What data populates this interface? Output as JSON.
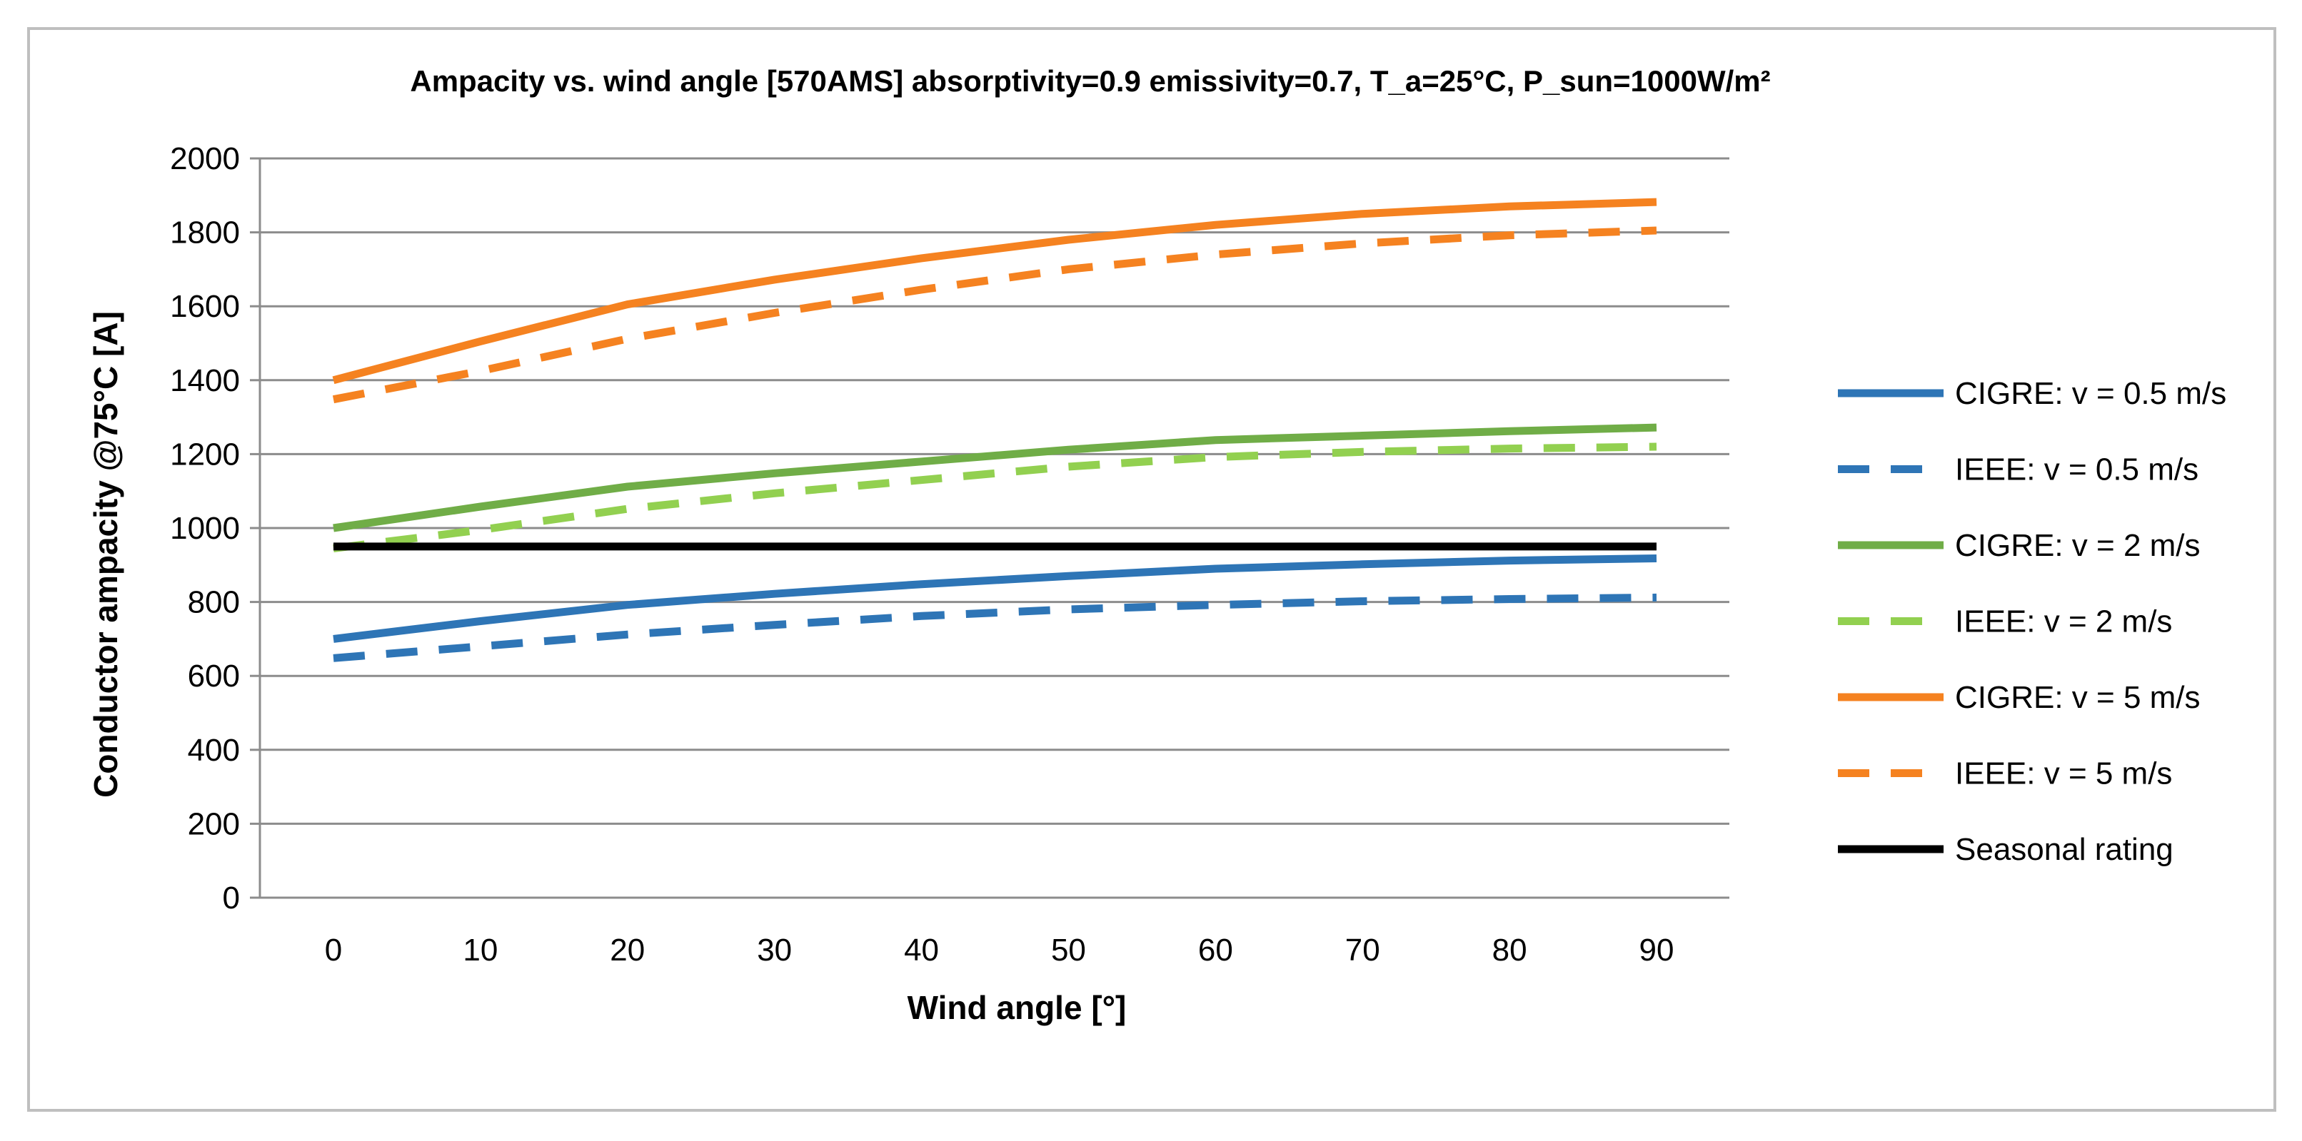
{
  "chart_data": {
    "type": "line",
    "title": "Ampacity vs. wind angle [570AMS] absorptivity=0.9  emissivity=0.7, T_a=25°C, P_sun=1000W/m²",
    "xlabel": "Wind angle [°]",
    "ylabel": "Conductor ampacity @75°C [A]",
    "x": [
      0,
      10,
      20,
      30,
      40,
      50,
      60,
      70,
      80,
      90
    ],
    "xlim": [
      0,
      90
    ],
    "ylim": [
      0,
      2000
    ],
    "yticks": [
      0,
      200,
      400,
      600,
      800,
      1000,
      1200,
      1400,
      1600,
      1800,
      2000
    ],
    "grid": "horizontal",
    "legend_position": "right",
    "series": [
      {
        "name": "CIGRE: v = 0.5 m/s",
        "color": "#2e75b6",
        "dash": "solid",
        "values": [
          700,
          748,
          792,
          822,
          848,
          870,
          890,
          902,
          912,
          918
        ]
      },
      {
        "name": "IEEE: v = 0.5 m/s",
        "color": "#2e75b6",
        "dash": "dashed",
        "values": [
          648,
          680,
          712,
          738,
          762,
          780,
          792,
          802,
          808,
          812
        ]
      },
      {
        "name": "CIGRE: v = 2 m/s",
        "color": "#70ad47",
        "dash": "solid",
        "values": [
          1000,
          1058,
          1112,
          1148,
          1180,
          1212,
          1238,
          1250,
          1262,
          1272
        ]
      },
      {
        "name": "IEEE: v = 2 m/s",
        "color": "#92d050",
        "dash": "dashed",
        "values": [
          945,
          995,
          1052,
          1094,
          1130,
          1166,
          1192,
          1206,
          1215,
          1220
        ]
      },
      {
        "name": "CIGRE: v = 5 m/s",
        "color": "#f58220",
        "dash": "solid",
        "values": [
          1400,
          1505,
          1605,
          1672,
          1730,
          1780,
          1820,
          1850,
          1870,
          1882
        ]
      },
      {
        "name": "IEEE: v = 5 m/s",
        "color": "#f58220",
        "dash": "dashed",
        "values": [
          1348,
          1425,
          1512,
          1582,
          1645,
          1700,
          1740,
          1770,
          1792,
          1805
        ]
      },
      {
        "name": "Seasonal rating",
        "color": "#000000",
        "dash": "solid",
        "values": [
          950,
          950,
          950,
          950,
          950,
          950,
          950,
          950,
          950,
          950
        ]
      }
    ]
  }
}
